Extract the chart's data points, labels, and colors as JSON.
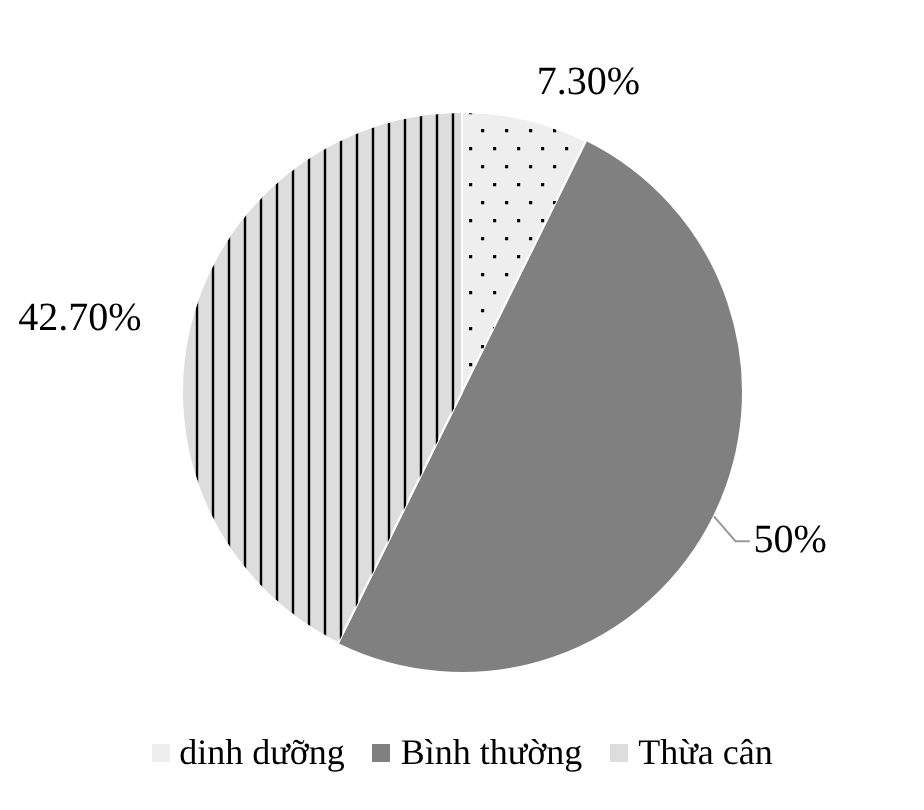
{
  "chart_data": {
    "type": "pie",
    "categories": [
      "dinh dưỡng",
      "Bình thường",
      "Thừa cân"
    ],
    "values": [
      7.3,
      50,
      42.7
    ],
    "value_labels": [
      "7.30%",
      "50%",
      "42.70%"
    ],
    "colors": [
      "#eeeeee",
      "#808080",
      "#dddddd"
    ],
    "legend": "bottom"
  }
}
